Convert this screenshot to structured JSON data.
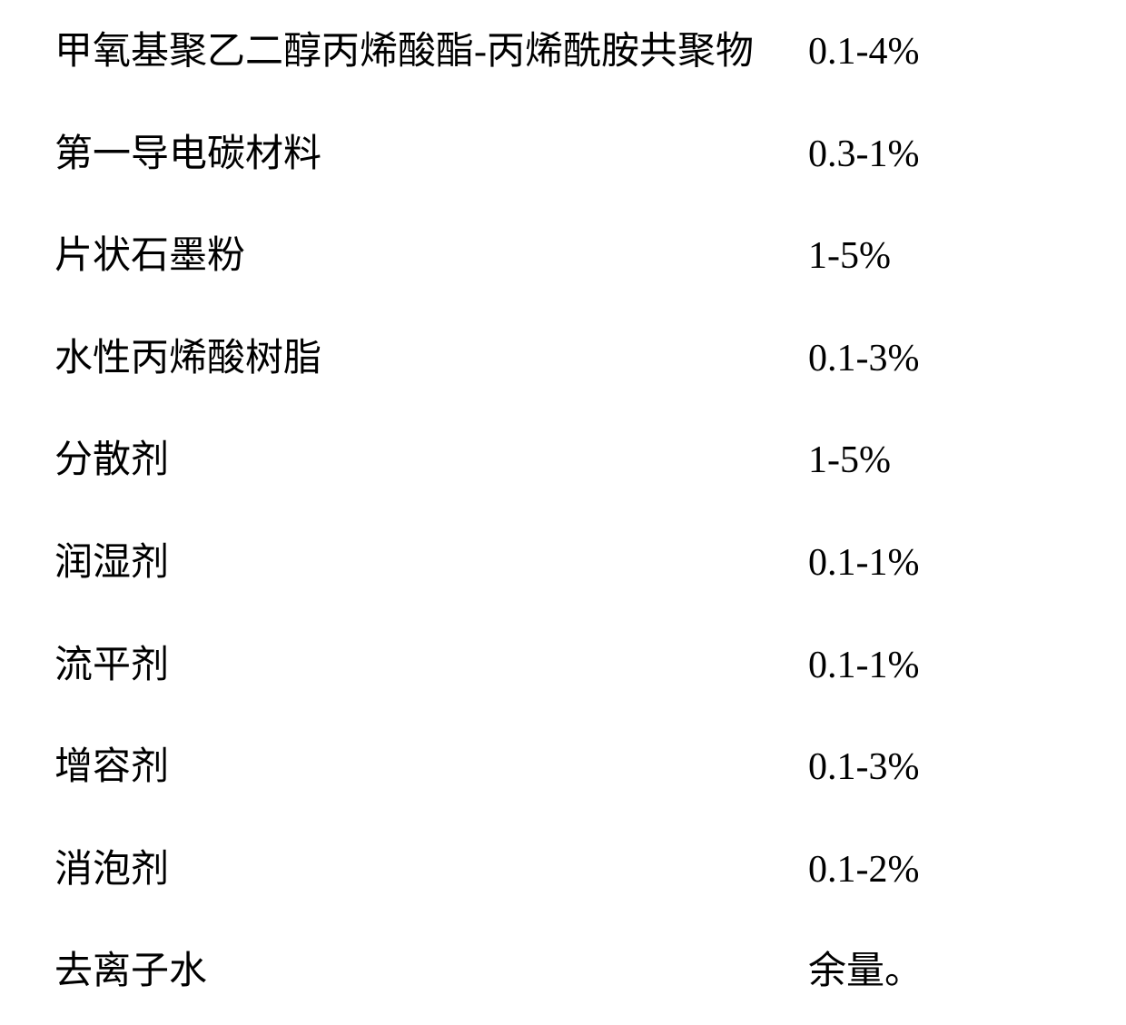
{
  "type": "table",
  "rows": [
    {
      "label": "甲氧基聚乙二醇丙烯酸酯-丙烯酰胺共聚物",
      "value": "0.1-4%"
    },
    {
      "label": "第一导电碳材料",
      "value": "0.3-1%"
    },
    {
      "label": "片状石墨粉",
      "value": "1-5%"
    },
    {
      "label": "水性丙烯酸树脂",
      "value": "0.1-3%"
    },
    {
      "label": "分散剂",
      "value": "1-5%"
    },
    {
      "label": "润湿剂",
      "value": "0.1-1%"
    },
    {
      "label": "流平剂",
      "value": "0.1-1%"
    },
    {
      "label": "增容剂",
      "value": "0.1-3%"
    },
    {
      "label": "消泡剂",
      "value": "0.1-2%"
    },
    {
      "label": "去离子水",
      "value": "余量。"
    }
  ],
  "styling": {
    "background_color": "#ffffff",
    "text_color": "#000000",
    "font_size": 42,
    "font_family": "SimSun",
    "row_spacing": 58,
    "label_column_width": 830
  }
}
